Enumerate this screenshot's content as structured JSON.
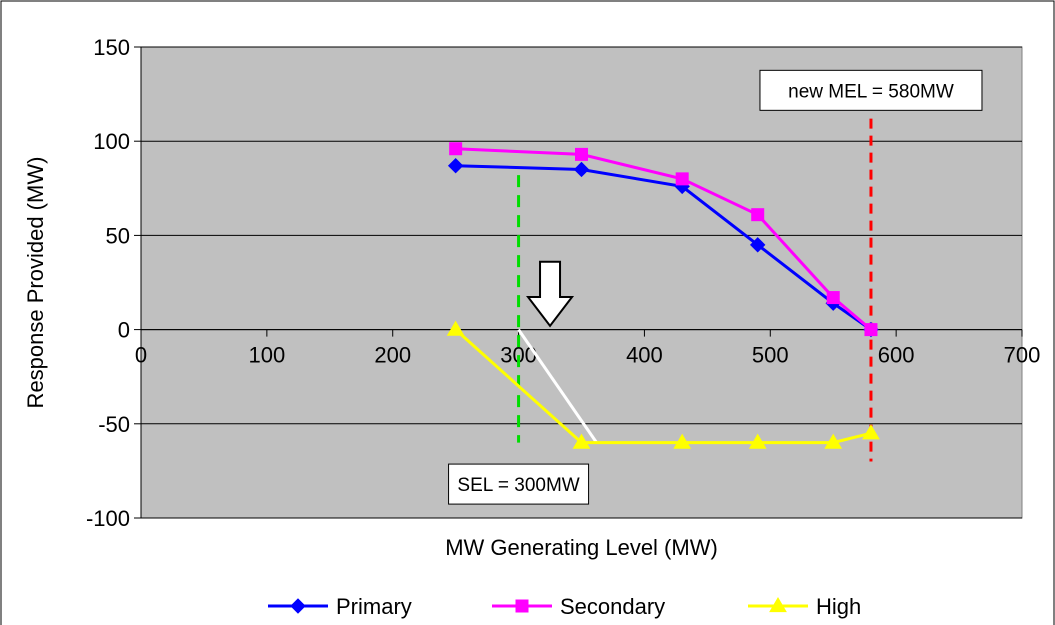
{
  "chart_data": {
    "type": "line",
    "xlabel": "MW Generating Level (MW)",
    "ylabel": "Response Provided (MW)",
    "xlim": [
      0,
      700
    ],
    "ylim": [
      -100,
      150
    ],
    "x_ticks": [
      0,
      100,
      200,
      300,
      400,
      500,
      600,
      700
    ],
    "y_ticks": [
      -100,
      -50,
      0,
      50,
      100,
      150
    ],
    "grid": "horizontal",
    "legend": "bottom",
    "series": [
      {
        "name": "Primary",
        "color": "#0000ff",
        "marker": "diamond",
        "x": [
          250,
          350,
          430,
          490,
          550,
          580
        ],
        "y": [
          87,
          85,
          76,
          45,
          14,
          0
        ]
      },
      {
        "name": "Secondary",
        "color": "#ff00ff",
        "marker": "square",
        "x": [
          250,
          350,
          430,
          490,
          550,
          580
        ],
        "y": [
          96,
          93,
          80,
          61,
          17,
          0
        ]
      },
      {
        "name": "High",
        "color": "#ffff00",
        "marker": "triangle",
        "x": [
          250,
          350,
          430,
          490,
          550,
          580
        ],
        "y": [
          0,
          -60,
          -60,
          -60,
          -60,
          -55
        ]
      }
    ],
    "annotations": {
      "sel_line": {
        "x": 300,
        "y_from": -60,
        "y_to": 82,
        "color": "#00dd00"
      },
      "mel_line": {
        "x": 580,
        "y_from": -70,
        "y_to": 112,
        "color": "#ff0000"
      },
      "shift_line": {
        "x": [
          300,
          362
        ],
        "y": [
          0,
          -60
        ],
        "color": "#ffffff"
      },
      "arrow": {
        "x": 325,
        "y_top": 36,
        "y_bottom": 2,
        "direction": "down"
      },
      "sel_label": {
        "text": "SEL = 300MW",
        "x": 300,
        "y": -82
      },
      "mel_label": {
        "text": "new MEL = 580MW",
        "x": 580,
        "y": 127
      }
    }
  }
}
